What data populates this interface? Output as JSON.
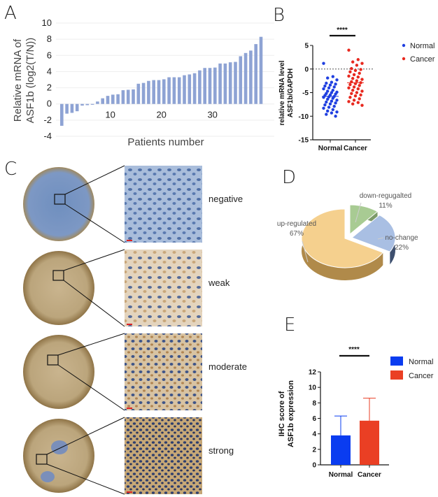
{
  "panels": {
    "a": "A",
    "b": "B",
    "c": "C",
    "d": "D",
    "e": "E"
  },
  "chart_data": [
    {
      "id": "A",
      "type": "bar",
      "xlabel": "Patients number",
      "ylabel_lines": [
        "Relative mRNA of",
        "ASF1b (log2(T/N))"
      ],
      "ylim": [
        -4,
        10
      ],
      "yticks": [
        -4,
        -2,
        0,
        2,
        4,
        6,
        8,
        10
      ],
      "xticks": [
        10,
        20,
        30
      ],
      "color": "#8ea3d4",
      "values": [
        -2.7,
        -1.2,
        -1.1,
        -0.9,
        -0.2,
        -0.15,
        -0.1,
        0.3,
        0.7,
        1.0,
        1.15,
        1.2,
        1.7,
        1.75,
        1.8,
        2.5,
        2.6,
        2.85,
        2.95,
        2.95,
        3.05,
        3.3,
        3.3,
        3.3,
        3.55,
        3.65,
        3.8,
        4.15,
        4.45,
        4.45,
        4.5,
        5.0,
        5.0,
        5.15,
        5.2,
        5.9,
        6.3,
        6.6,
        7.4,
        8.3
      ]
    },
    {
      "id": "B",
      "type": "scatter",
      "ylabel_lines": [
        "relative mRNA level",
        "ASF1b/GAPDH"
      ],
      "ylim": [
        -15,
        5
      ],
      "yticks": [
        -15,
        -10,
        -5,
        0,
        5
      ],
      "categories": [
        "Normal",
        "Cancer"
      ],
      "significance": "****",
      "reference_line": 0,
      "legend_placement": "right",
      "series": [
        {
          "name": "Normal",
          "color": "#1f3fe0",
          "mean": -5.8,
          "values": [
            1.2,
            -1.6,
            -1.9,
            -2.3,
            -2.8,
            -3.0,
            -3.2,
            -3.4,
            -3.6,
            -3.8,
            -4.0,
            -4.2,
            -4.5,
            -4.7,
            -4.9,
            -5.0,
            -5.2,
            -5.3,
            -5.5,
            -5.6,
            -5.8,
            -5.9,
            -6.0,
            -6.2,
            -6.4,
            -6.6,
            -6.8,
            -7.0,
            -7.2,
            -7.4,
            -7.6,
            -7.9,
            -8.1,
            -8.3,
            -8.6,
            -8.9,
            -9.1,
            -9.3,
            -9.6,
            -10.0
          ]
        },
        {
          "name": "Cancer",
          "color": "#e8281e",
          "mean": -2.9,
          "values": [
            4.0,
            2.0,
            1.5,
            1.2,
            0.8,
            0.1,
            -0.1,
            -0.3,
            -0.6,
            -0.9,
            -1.2,
            -1.5,
            -1.7,
            -2.0,
            -2.2,
            -2.5,
            -2.7,
            -2.9,
            -3.1,
            -3.3,
            -3.5,
            -3.8,
            -4.0,
            -4.2,
            -4.5,
            -4.7,
            -5.0,
            -5.2,
            -5.5,
            -5.7,
            -6.0,
            -6.3,
            -6.6,
            -6.9,
            -7.1,
            -7.4,
            -7.7
          ]
        }
      ]
    },
    {
      "id": "D",
      "type": "pie",
      "slices": [
        {
          "label": "down-regugalted",
          "pct_label": "11%",
          "value": 11,
          "color": "#a8cb93"
        },
        {
          "label": "no-change",
          "pct_label": "22%",
          "value": 22,
          "color": "#a9bfe3"
        },
        {
          "label": "up-regulated",
          "pct_label": "67%",
          "value": 67,
          "color": "#f5d08e"
        }
      ]
    },
    {
      "id": "E",
      "type": "bar",
      "ylabel_lines": [
        "IHC score of",
        "ASF1b expression"
      ],
      "ylim": [
        0,
        12
      ],
      "yticks": [
        0,
        2,
        4,
        6,
        8,
        10,
        12
      ],
      "categories": [
        "Normal",
        "Cancer"
      ],
      "significance": "****",
      "legend_placement": "top-right",
      "series": [
        {
          "name": "Normal",
          "color": "#0a3cf0",
          "value": 3.8,
          "error": 6.3
        },
        {
          "name": "Cancer",
          "color": "#ea3f24",
          "value": 5.7,
          "error": 8.6
        }
      ]
    }
  ],
  "ihc": {
    "levels": [
      "negative",
      "weak",
      "moderate",
      "strong"
    ]
  }
}
